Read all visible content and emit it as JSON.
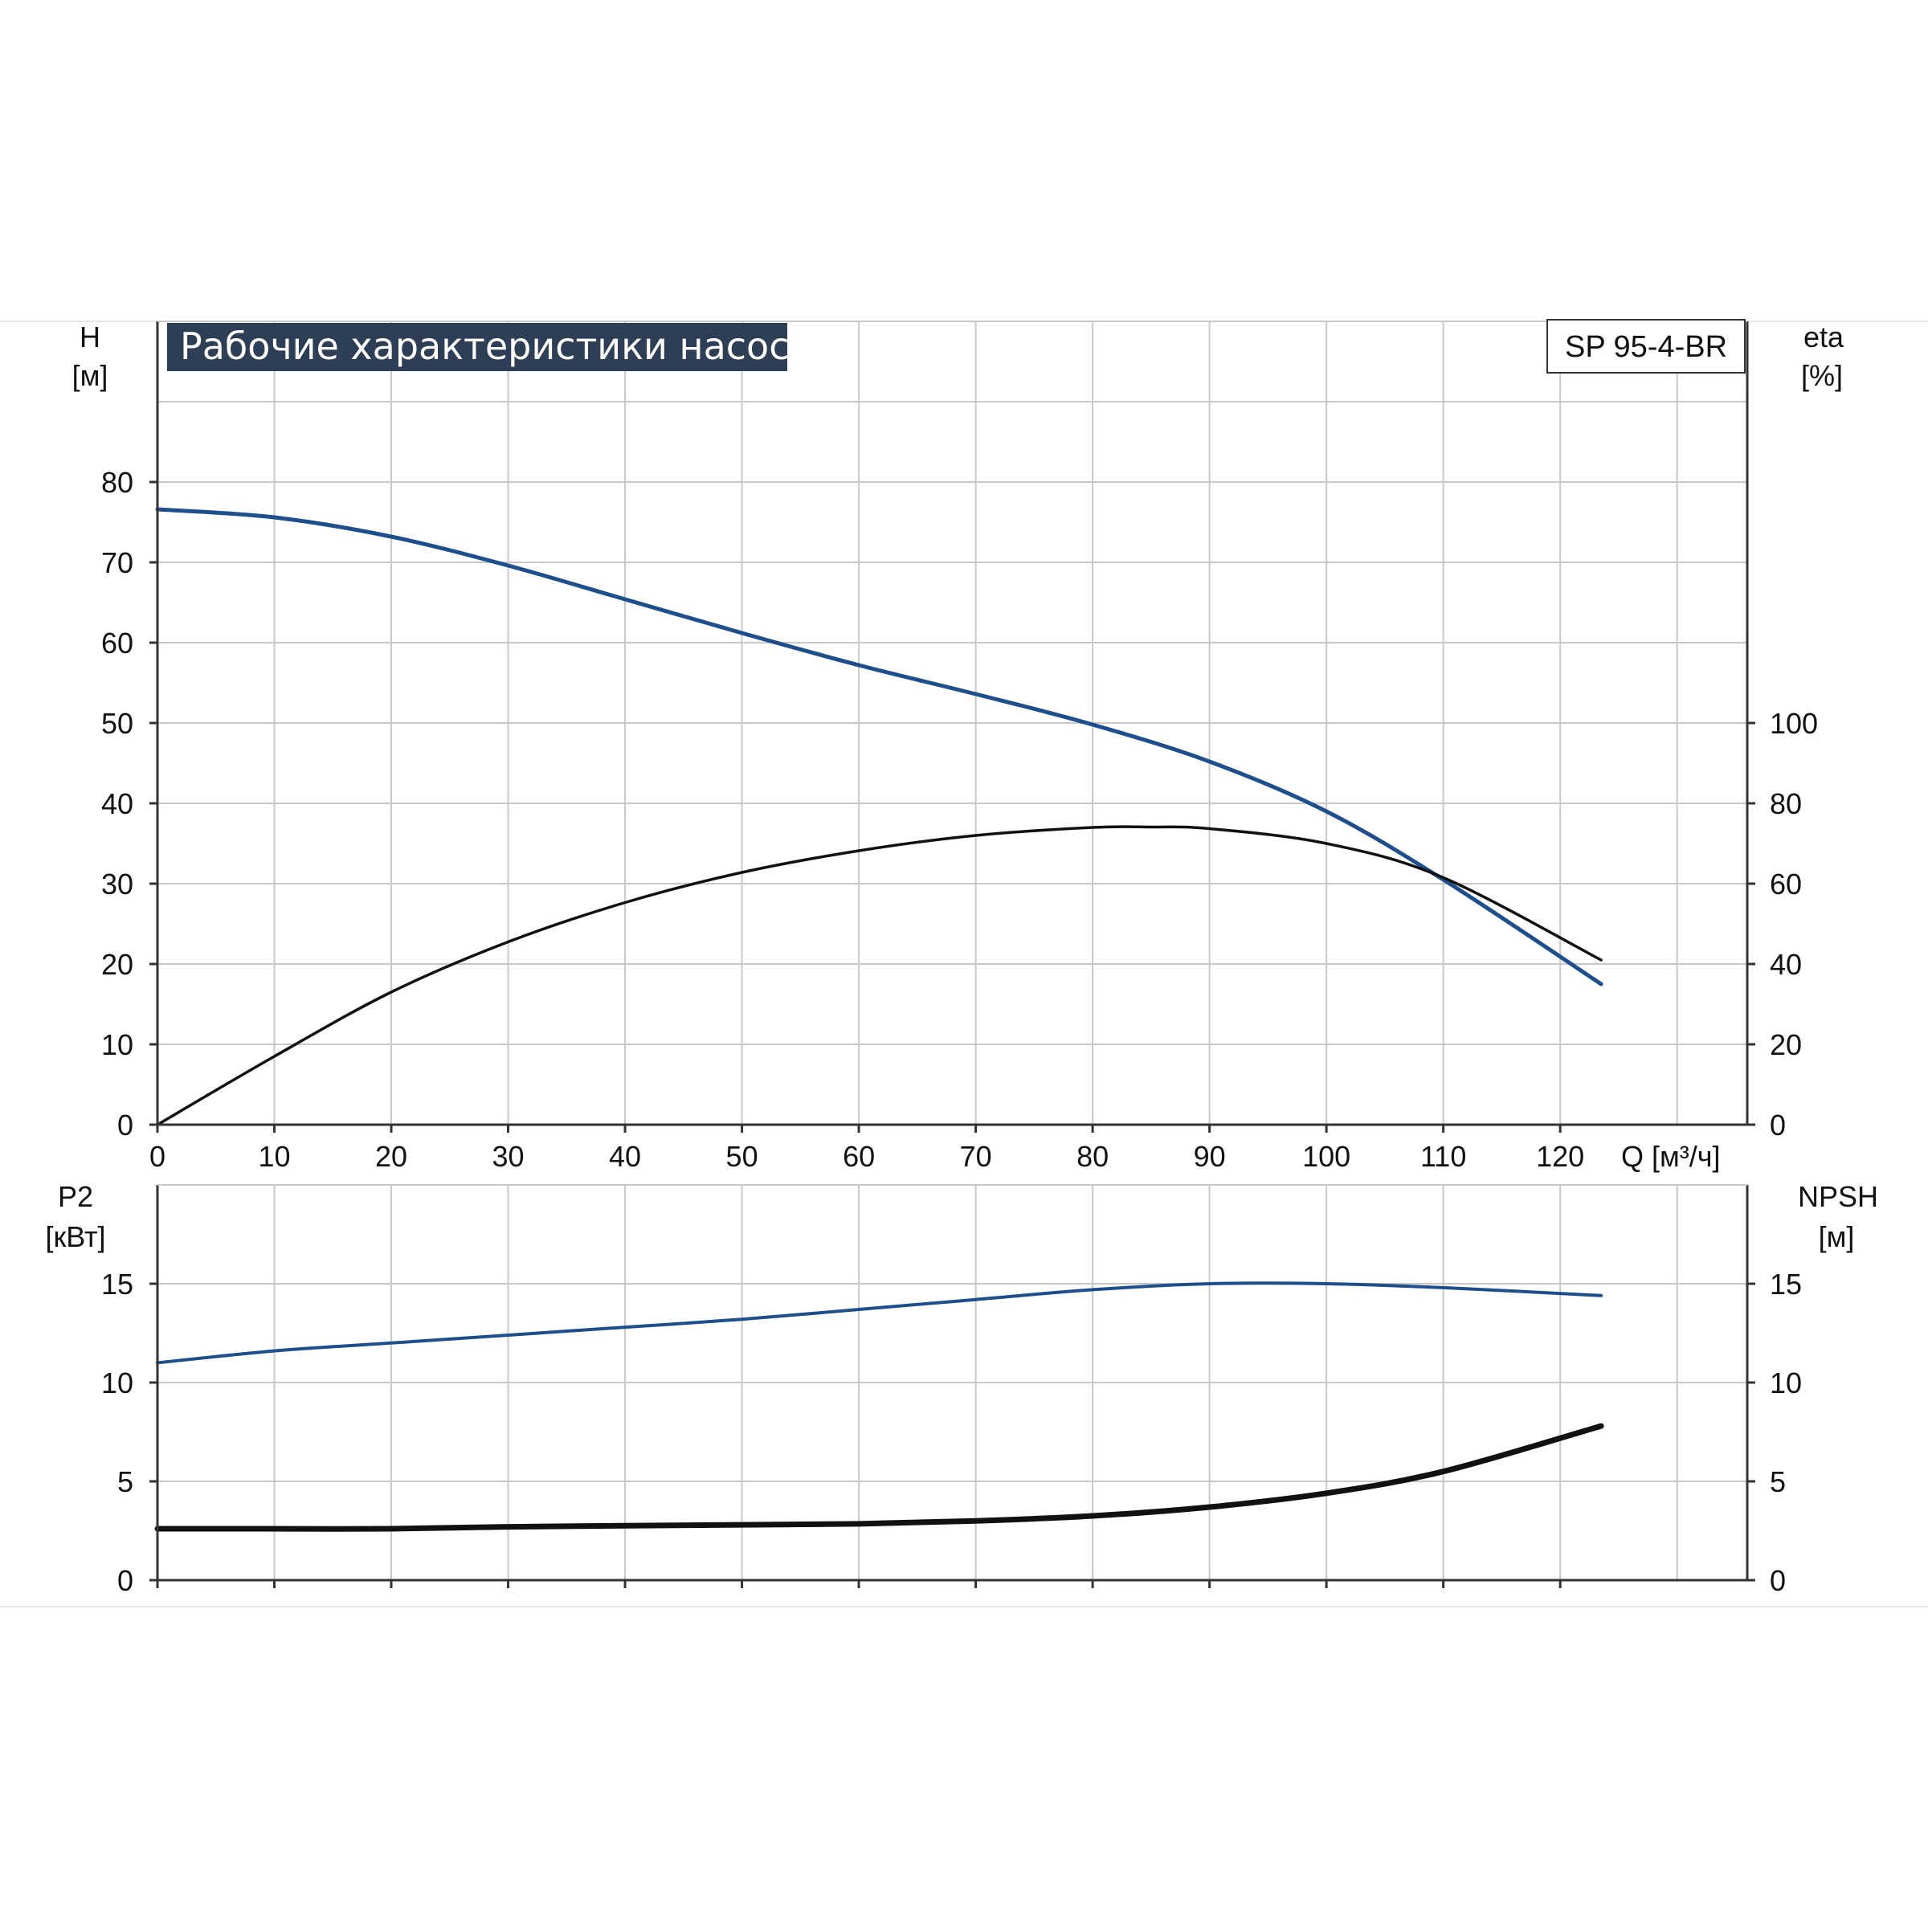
{
  "chart_data": {
    "title": "Рабочие характеристики насоса",
    "model": "SP 95-4-BR",
    "colors": {
      "head": "#1f4e8c",
      "efficiency": "#111111",
      "p2": "#1f4e8c",
      "npsh": "#111111",
      "title_bg": "#2e3e54",
      "grid": "#c8c8c8"
    },
    "x_axis": {
      "label": "Q [м³/ч]",
      "range": [
        0,
        136
      ],
      "ticks": [
        0,
        10,
        20,
        30,
        40,
        50,
        60,
        70,
        80,
        90,
        100,
        110,
        120
      ]
    },
    "top": {
      "type": "line",
      "left_axis": {
        "label_line1": "H",
        "label_line2": "[м]",
        "range": [
          0,
          100
        ],
        "ticks": [
          0,
          10,
          20,
          30,
          40,
          50,
          60,
          70,
          80
        ]
      },
      "right_axis": {
        "label_line1": "eta",
        "label_line2": "[%]",
        "range": [
          0,
          200
        ],
        "ticks": [
          0,
          20,
          40,
          60,
          80,
          100
        ]
      },
      "series": [
        {
          "key": "head",
          "axis": "left",
          "width": 5,
          "x": [
            0,
            10,
            20,
            30,
            40,
            50,
            60,
            70,
            80,
            90,
            100,
            110,
            123.5
          ],
          "y": [
            76.6,
            75.6,
            73.2,
            69.6,
            65.4,
            61.2,
            57.2,
            53.6,
            49.8,
            45.2,
            39.0,
            30.5,
            17.5
          ]
        },
        {
          "key": "efficiency",
          "axis": "right",
          "width": 3.5,
          "x": [
            0,
            10,
            20,
            30,
            40,
            50,
            60,
            70,
            80,
            85,
            90,
            100,
            110,
            123.5
          ],
          "y": [
            0,
            17,
            33,
            45.5,
            55.3,
            62.8,
            68.2,
            72.0,
            74.0,
            74.1,
            73.7,
            70.0,
            61.5,
            41.0
          ]
        }
      ]
    },
    "bottom": {
      "type": "line",
      "left_axis": {
        "label_line1": "P2",
        "label_line2": "[кВт]",
        "range": [
          0,
          20
        ],
        "ticks": [
          0,
          5,
          10,
          15
        ]
      },
      "right_axis": {
        "label_line1": "NPSH",
        "label_line2": "[м]",
        "range": [
          0,
          20
        ],
        "ticks": [
          0,
          5,
          10,
          15
        ]
      },
      "series": [
        {
          "key": "p2",
          "axis": "left",
          "width": 4,
          "x": [
            0,
            10,
            20,
            30,
            40,
            50,
            60,
            70,
            80,
            90,
            100,
            110,
            123.5
          ],
          "y": [
            11.0,
            11.6,
            12.0,
            12.4,
            12.8,
            13.2,
            13.7,
            14.2,
            14.7,
            15.0,
            15.0,
            14.8,
            14.4
          ]
        },
        {
          "key": "npsh",
          "axis": "right",
          "width": 7,
          "x": [
            0,
            9,
            20,
            30,
            40,
            50,
            60,
            70,
            80,
            90,
            100,
            110,
            123.5
          ],
          "y": [
            2.6,
            2.6,
            2.6,
            2.7,
            2.75,
            2.8,
            2.85,
            3.0,
            3.25,
            3.7,
            4.4,
            5.5,
            7.8
          ]
        }
      ]
    }
  }
}
